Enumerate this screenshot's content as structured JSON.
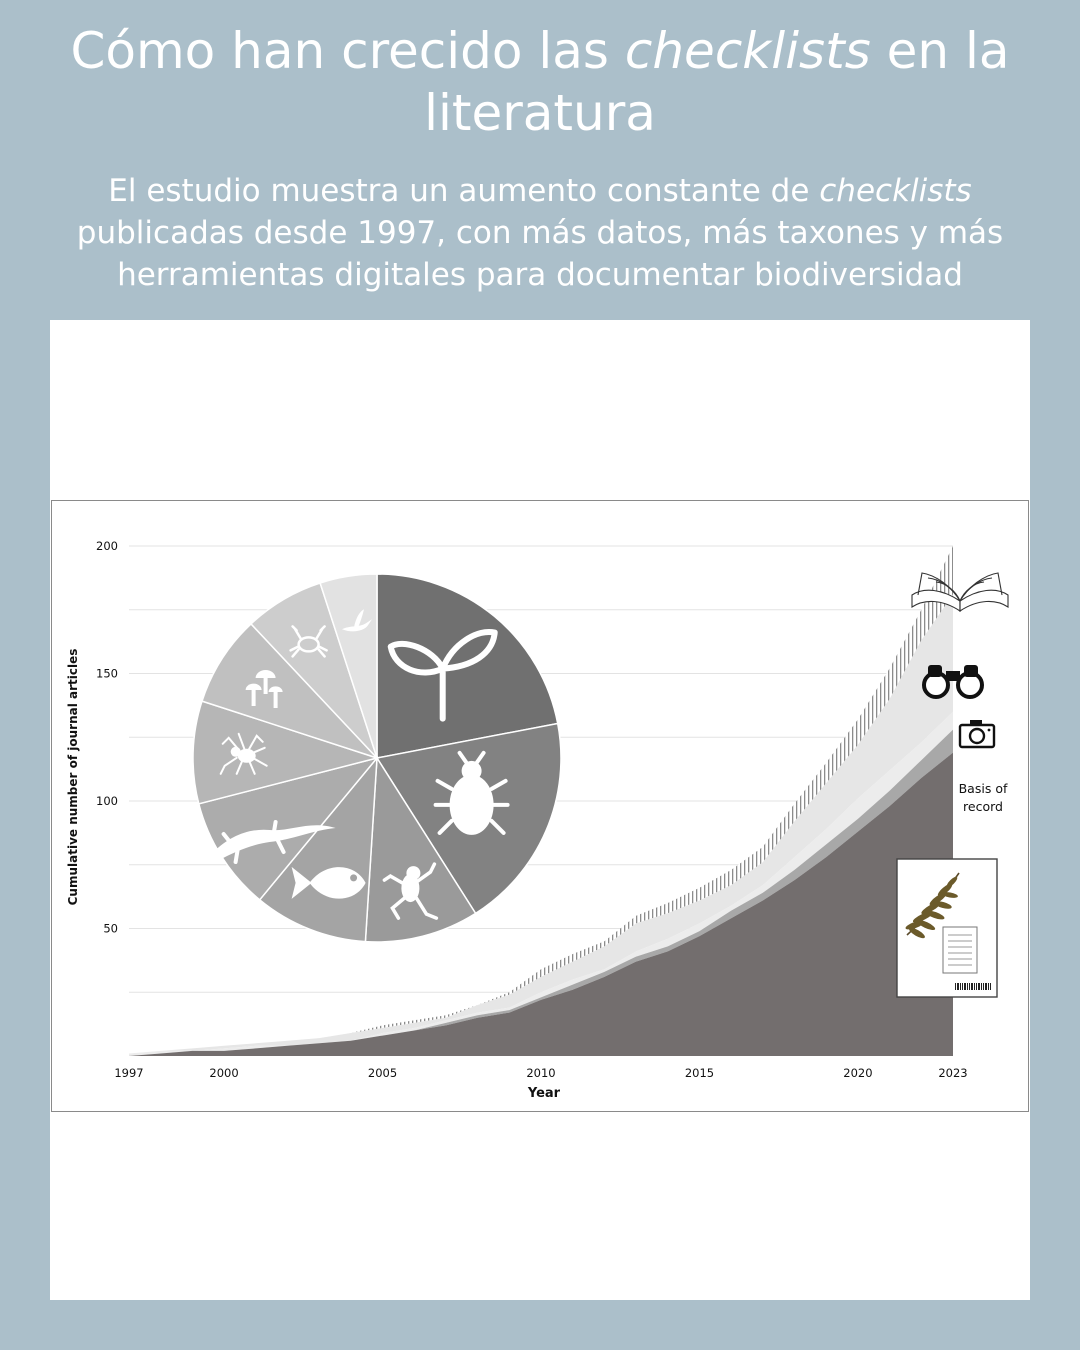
{
  "header": {
    "title_pre": "Cómo han crecido las ",
    "title_em": "checklists",
    "title_post": " en la literatura",
    "subtitle_pre": "El estudio muestra un aumento constante de ",
    "subtitle_em": "checklists",
    "subtitle_post": " publicadas desde 1997, con más datos, más taxones y más herramientas digitales para documentar biodiversidad"
  },
  "colors": {
    "background": "#abbfca",
    "specimen_area": "#736e6e",
    "band_mid": "#a8a8a8",
    "band_light": "#ececec",
    "hatch": "#8c8c8c",
    "pie_plants": "#707070",
    "pie_insects": "#828282",
    "pie_light": "#e2e2e2"
  },
  "chart_data": {
    "type": "area",
    "xlabel": "Year",
    "ylabel": "Cumulative number of journal articles",
    "xlim": [
      1997,
      2023
    ],
    "ylim": [
      0,
      200
    ],
    "x_ticks": [
      1997,
      2000,
      2005,
      2010,
      2015,
      2020,
      2023
    ],
    "y_ticks": [
      50,
      100,
      150,
      200
    ],
    "grid": true,
    "x": [
      1997,
      1998,
      1999,
      2000,
      2001,
      2002,
      2003,
      2004,
      2005,
      2006,
      2007,
      2008,
      2009,
      2010,
      2011,
      2012,
      2013,
      2014,
      2015,
      2016,
      2017,
      2018,
      2019,
      2020,
      2021,
      2022,
      2023
    ],
    "series": [
      {
        "values": [
          0,
          1,
          2,
          2,
          3,
          4,
          5,
          6,
          8,
          10,
          12,
          15,
          17,
          22,
          26,
          31,
          37,
          41,
          47,
          54,
          61,
          69,
          78,
          88,
          98,
          109,
          119
        ]
      },
      {
        "values": [
          0,
          1,
          2,
          2,
          3,
          4,
          5,
          6,
          8,
          10,
          13,
          16,
          18,
          23,
          28,
          33,
          39,
          43,
          49,
          57,
          64,
          73,
          83,
          93,
          104,
          116,
          128
        ]
      },
      {
        "values": [
          1,
          2,
          2,
          3,
          4,
          4,
          5,
          6,
          9,
          11,
          14,
          17,
          19,
          25,
          30,
          34,
          41,
          46,
          52,
          59,
          67,
          78,
          89,
          101,
          112,
          123,
          135
        ]
      },
      {
        "values": [
          1,
          2,
          3,
          4,
          5,
          6,
          7,
          9,
          11,
          13,
          15,
          20,
          24,
          31,
          37,
          43,
          52,
          56,
          61,
          67,
          76,
          92,
          107,
          122,
          140,
          163,
          181
        ]
      },
      {
        "values": [
          1,
          2,
          3,
          4,
          5,
          6,
          7,
          9,
          12,
          14,
          16,
          20,
          25,
          34,
          40,
          45,
          55,
          60,
          66,
          73,
          82,
          99,
          115,
          132,
          152,
          175,
          200
        ]
      }
    ],
    "icon_labels": {
      "basis_of_record": "Basis of record"
    },
    "pie": [
      {
        "name": "plants-icon",
        "value": 22
      },
      {
        "name": "beetle-icon",
        "value": 19
      },
      {
        "name": "frog-icon",
        "value": 10
      },
      {
        "name": "fish-icon",
        "value": 10
      },
      {
        "name": "lizard-icon",
        "value": 10
      },
      {
        "name": "spider-icon",
        "value": 9
      },
      {
        "name": "mushroom-icon",
        "value": 8
      },
      {
        "name": "crab-icon",
        "value": 7
      },
      {
        "name": "bird-icon",
        "value": 5
      }
    ]
  }
}
